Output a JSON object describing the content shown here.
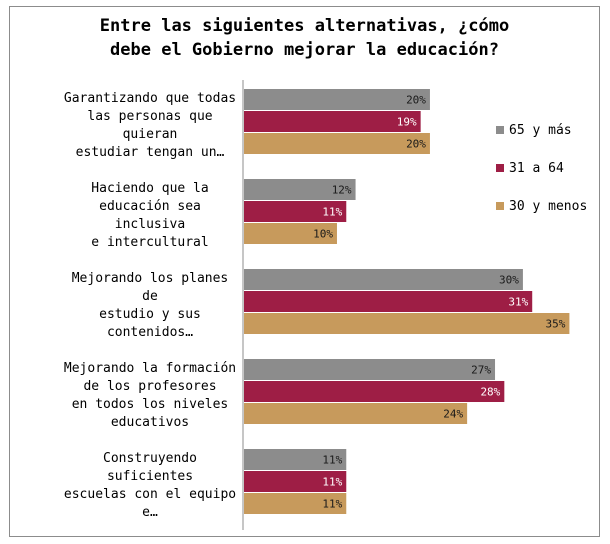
{
  "chart_data": {
    "type": "bar",
    "orientation": "horizontal",
    "title": [
      "Entre las siguientes alternativas, ¿cómo",
      "debe el Gobierno mejorar la educación?"
    ],
    "categories": [
      [
        "Garantizando que todas",
        "las personas que",
        "quieran",
        "estudiar tengan un…"
      ],
      [
        "Haciendo que la",
        "educación  sea",
        "inclusiva",
        "e intercultural"
      ],
      [
        "Mejorando los planes",
        "de",
        "estudio y sus",
        "contenidos…"
      ],
      [
        "Mejorando la formación",
        "de los profesores",
        "en todos los niveles",
        "educativos"
      ],
      [
        "Construyendo",
        "suficientes",
        "escuelas con el equipo",
        "e…"
      ]
    ],
    "series": [
      {
        "name": "65 y más",
        "color": "#8c8c8c",
        "values": [
          20,
          12,
          30,
          27,
          11
        ],
        "labels": [
          "20%",
          "12%",
          "30%",
          "27%",
          "11%"
        ]
      },
      {
        "name": "31 a 64",
        "color": "#9e1e45",
        "values": [
          19,
          11,
          31,
          28,
          11
        ],
        "labels": [
          "19%",
          "11%",
          "31%",
          "28%",
          "11%"
        ]
      },
      {
        "name": "30 y menos",
        "color": "#c79a5c",
        "values": [
          20,
          10,
          35,
          24,
          11
        ],
        "labels": [
          "20%",
          "10%",
          "35%",
          "24%",
          "11%"
        ]
      }
    ],
    "xlim": [
      0,
      37
    ],
    "grid": false,
    "legend": "right"
  }
}
